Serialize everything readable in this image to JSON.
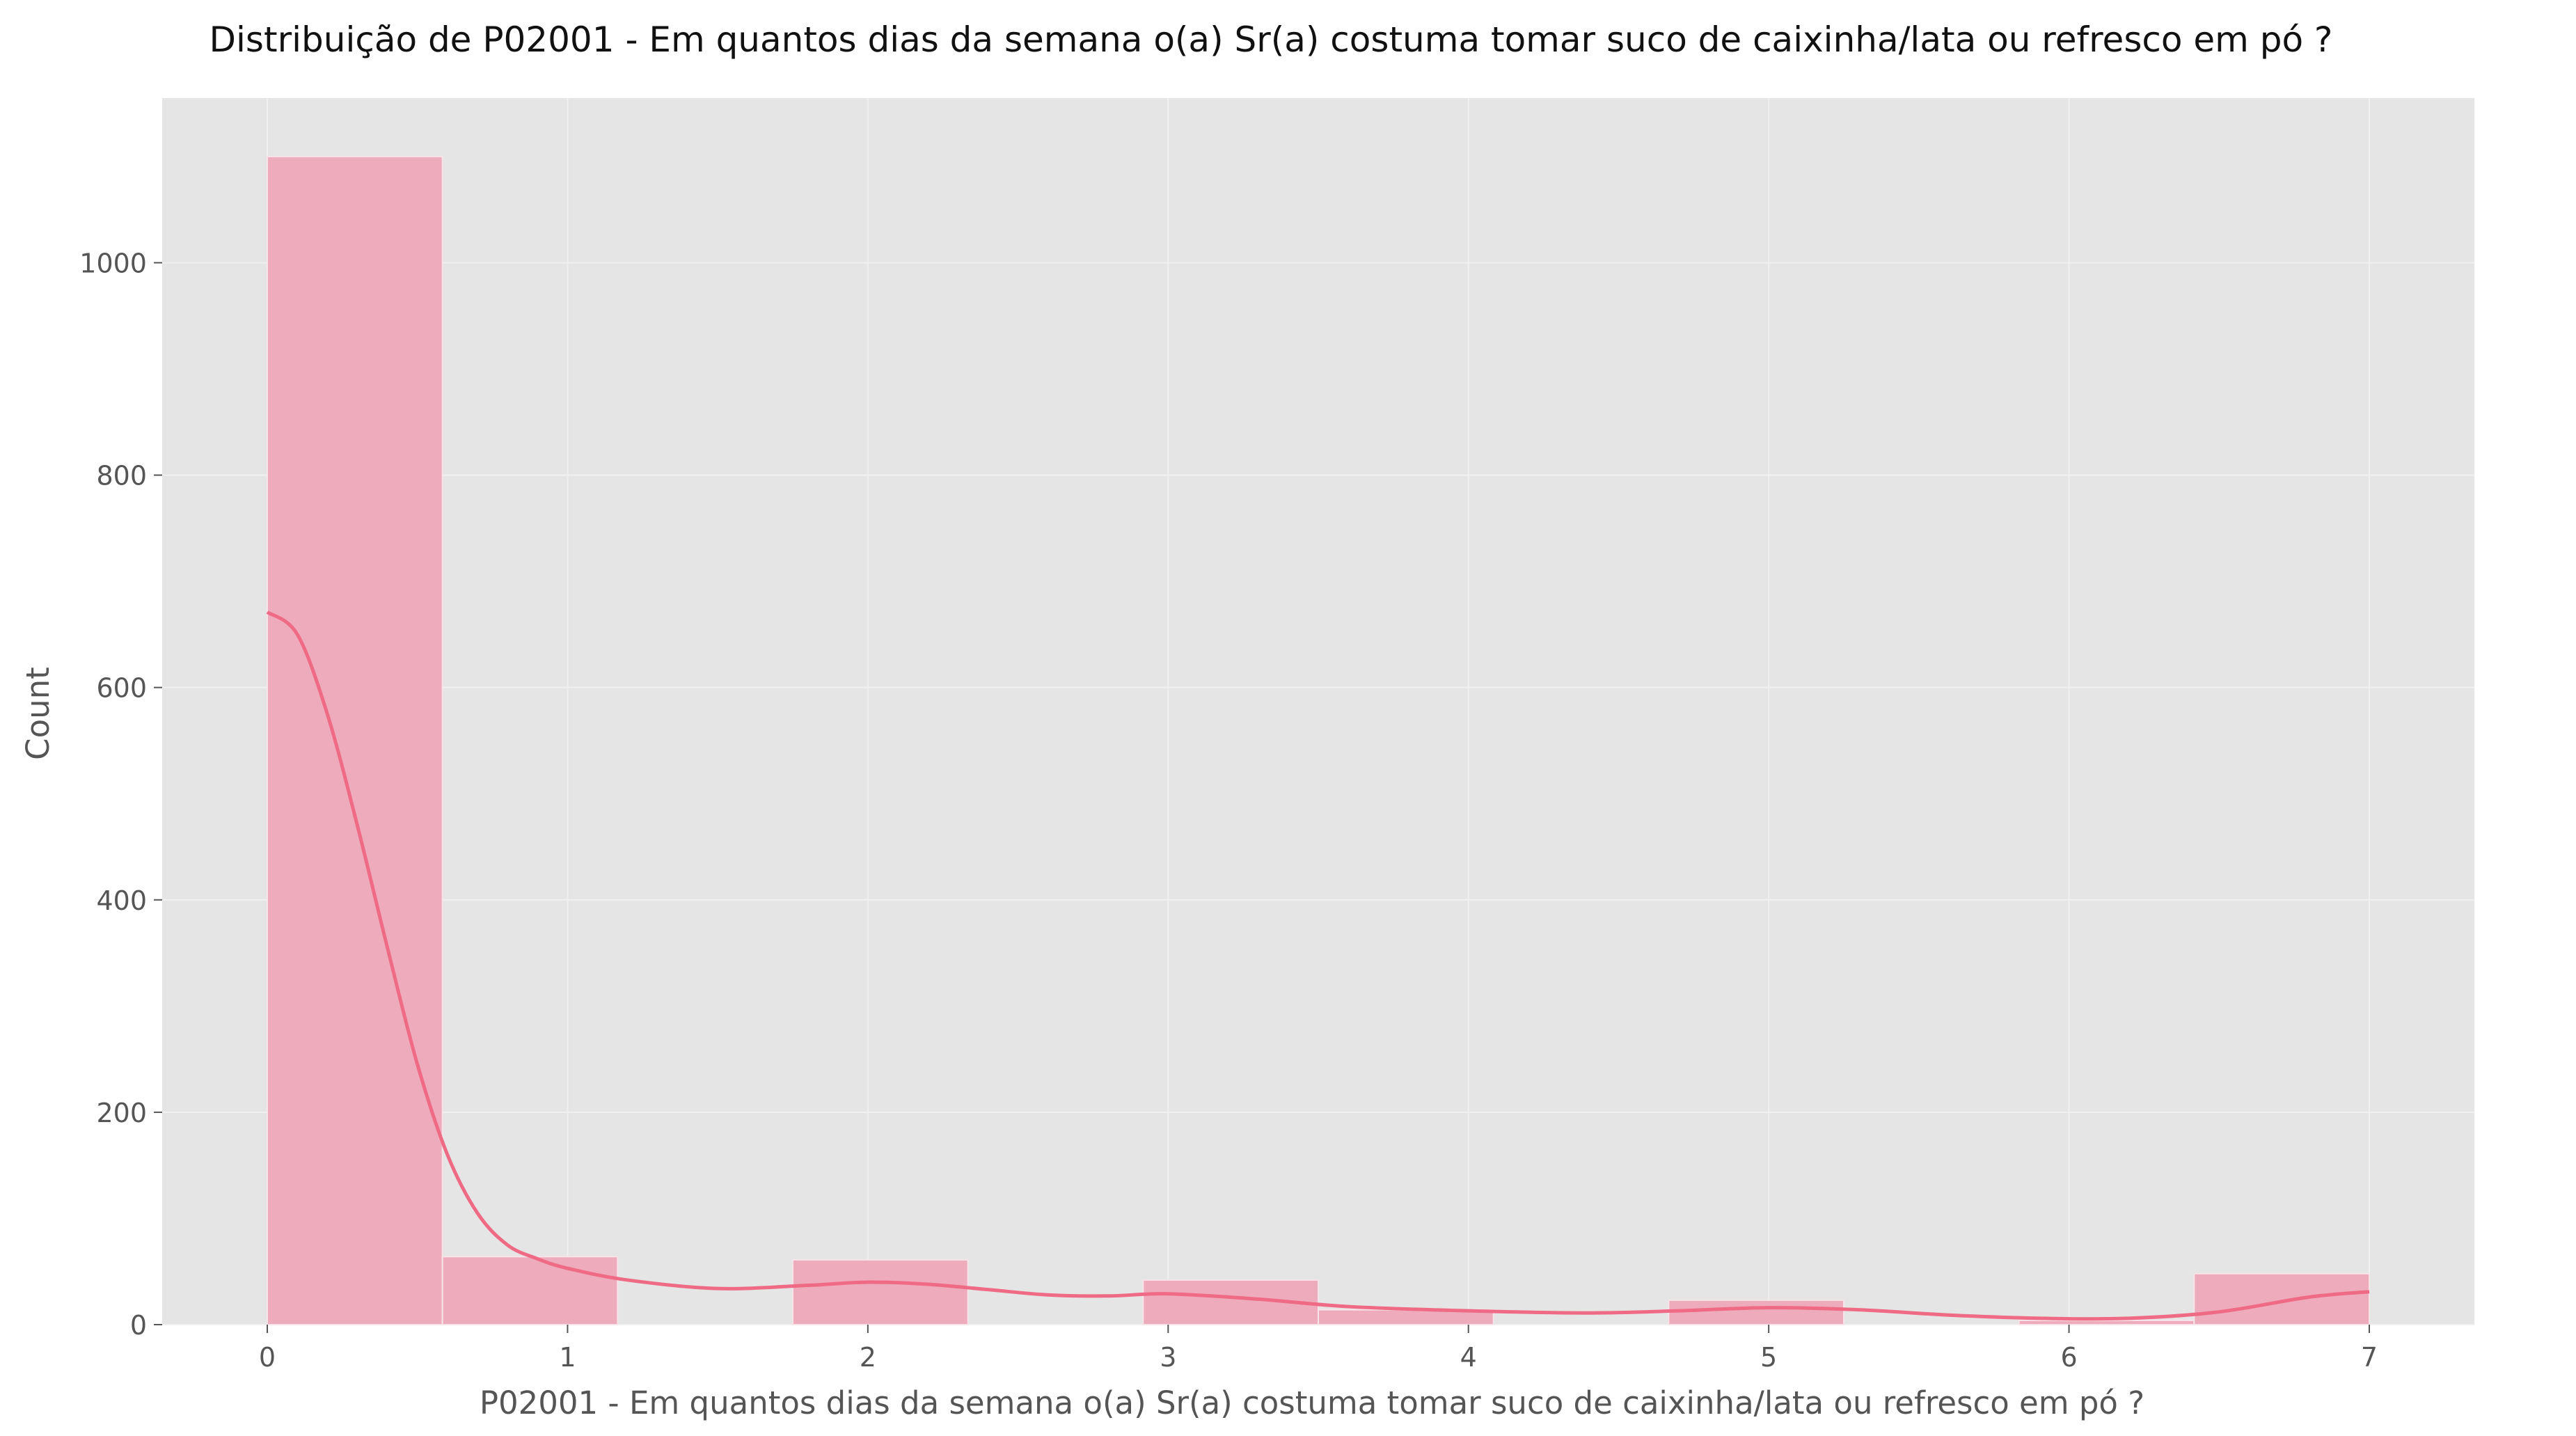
{
  "chart_data": {
    "type": "histogram",
    "title": "Distribuição de P02001 - Em quantos dias da semana o(a) Sr(a) costuma tomar suco de caixinha/lata ou refresco em pó ?",
    "xlabel": "P02001 - Em quantos dias da semana o(a) Sr(a) costuma tomar suco de caixinha/lata ou refresco em pó ?",
    "ylabel": "Count",
    "xlim": [
      -0.35,
      7.35
    ],
    "ylim": [
      0,
      1155
    ],
    "xticks": [
      0,
      1,
      2,
      3,
      4,
      5,
      6,
      7
    ],
    "yticks": [
      0,
      200,
      400,
      600,
      800,
      1000
    ],
    "grid": true,
    "bins": [
      {
        "start": 0.0,
        "end": 0.5833,
        "count": 1100
      },
      {
        "start": 0.5833,
        "end": 1.1667,
        "count": 64
      },
      {
        "start": 1.1667,
        "end": 1.75,
        "count": 0
      },
      {
        "start": 1.75,
        "end": 2.3333,
        "count": 61
      },
      {
        "start": 2.3333,
        "end": 2.9167,
        "count": 0
      },
      {
        "start": 2.9167,
        "end": 3.5,
        "count": 42
      },
      {
        "start": 3.5,
        "end": 4.0833,
        "count": 14
      },
      {
        "start": 4.0833,
        "end": 4.6667,
        "count": 0
      },
      {
        "start": 4.6667,
        "end": 5.25,
        "count": 23
      },
      {
        "start": 5.25,
        "end": 5.8333,
        "count": 0
      },
      {
        "start": 5.8333,
        "end": 6.4167,
        "count": 4
      },
      {
        "start": 6.4167,
        "end": 7.0,
        "count": 48
      }
    ],
    "kde": {
      "x": [
        0,
        0.1,
        0.2,
        0.3,
        0.4,
        0.5,
        0.6,
        0.7,
        0.8,
        0.9,
        1.0,
        1.2,
        1.5,
        1.8,
        2.0,
        2.2,
        2.4,
        2.6,
        2.8,
        3.0,
        3.3,
        3.6,
        4.0,
        4.4,
        4.7,
        5.0,
        5.3,
        5.6,
        5.9,
        6.2,
        6.5,
        6.8,
        7.0
      ],
      "y": [
        671,
        650,
        575,
        470,
        355,
        245,
        160,
        105,
        75,
        62,
        53,
        42,
        34,
        37,
        40,
        38,
        33,
        28,
        27,
        29,
        24,
        17,
        13,
        11,
        13,
        16,
        14,
        9,
        6,
        6,
        12,
        26,
        31
      ]
    },
    "colors": {
      "bar_fill": "#eeabbb",
      "bar_stroke": "#f7e4e9",
      "kde_line": "#ef6a84",
      "plot_background": "#e5e5e5",
      "grid": "#f0f0f0",
      "text": "#555555",
      "title": "#111111"
    }
  }
}
